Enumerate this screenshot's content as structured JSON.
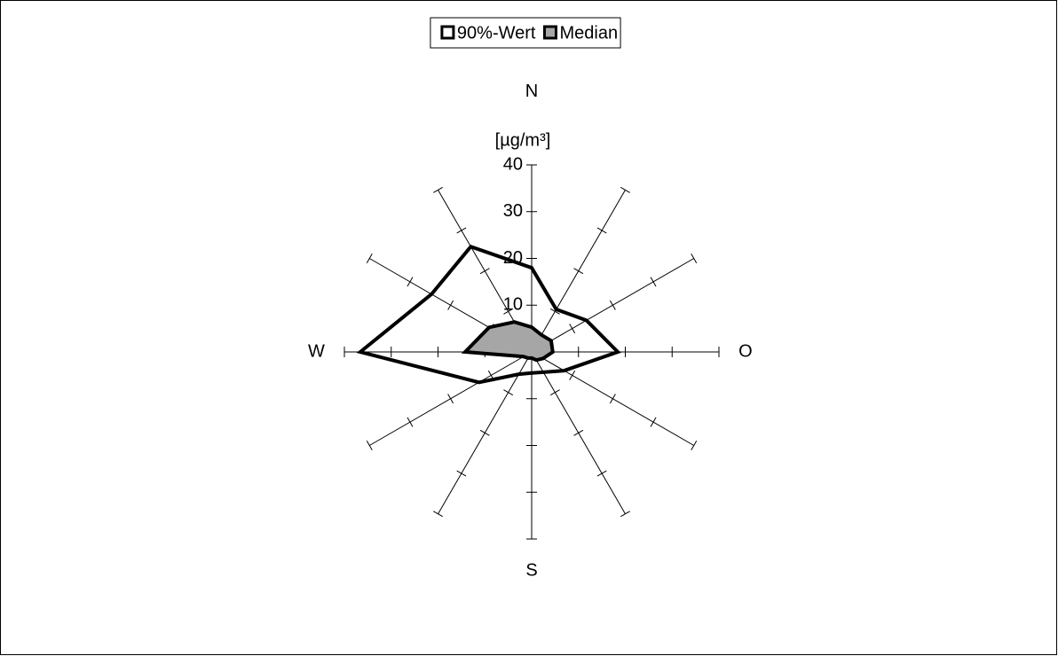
{
  "chart_data": {
    "type": "radar",
    "categories": [
      "N",
      null,
      null,
      "O",
      null,
      null,
      "S",
      null,
      null,
      "W",
      null,
      null
    ],
    "axis_label": "[µg/m³]",
    "series": [
      {
        "name": "90%-Wert",
        "color": "#000000",
        "fill": "none",
        "values": [
          18,
          10.5,
          13.5,
          18.4,
          8,
          5,
          4.5,
          5.5,
          13,
          36.6,
          24.7,
          26
        ]
      },
      {
        "name": "Median",
        "color": "#000000",
        "fill": "#a6a6a6",
        "values": [
          5.3,
          4.2,
          4.8,
          4.5,
          2.8,
          2,
          1.3,
          1.5,
          2,
          14.2,
          10.5,
          7.4
        ]
      }
    ],
    "ylim": [
      0,
      40
    ],
    "yticks": [
      0,
      10,
      20,
      30,
      40
    ],
    "legend": "top"
  }
}
